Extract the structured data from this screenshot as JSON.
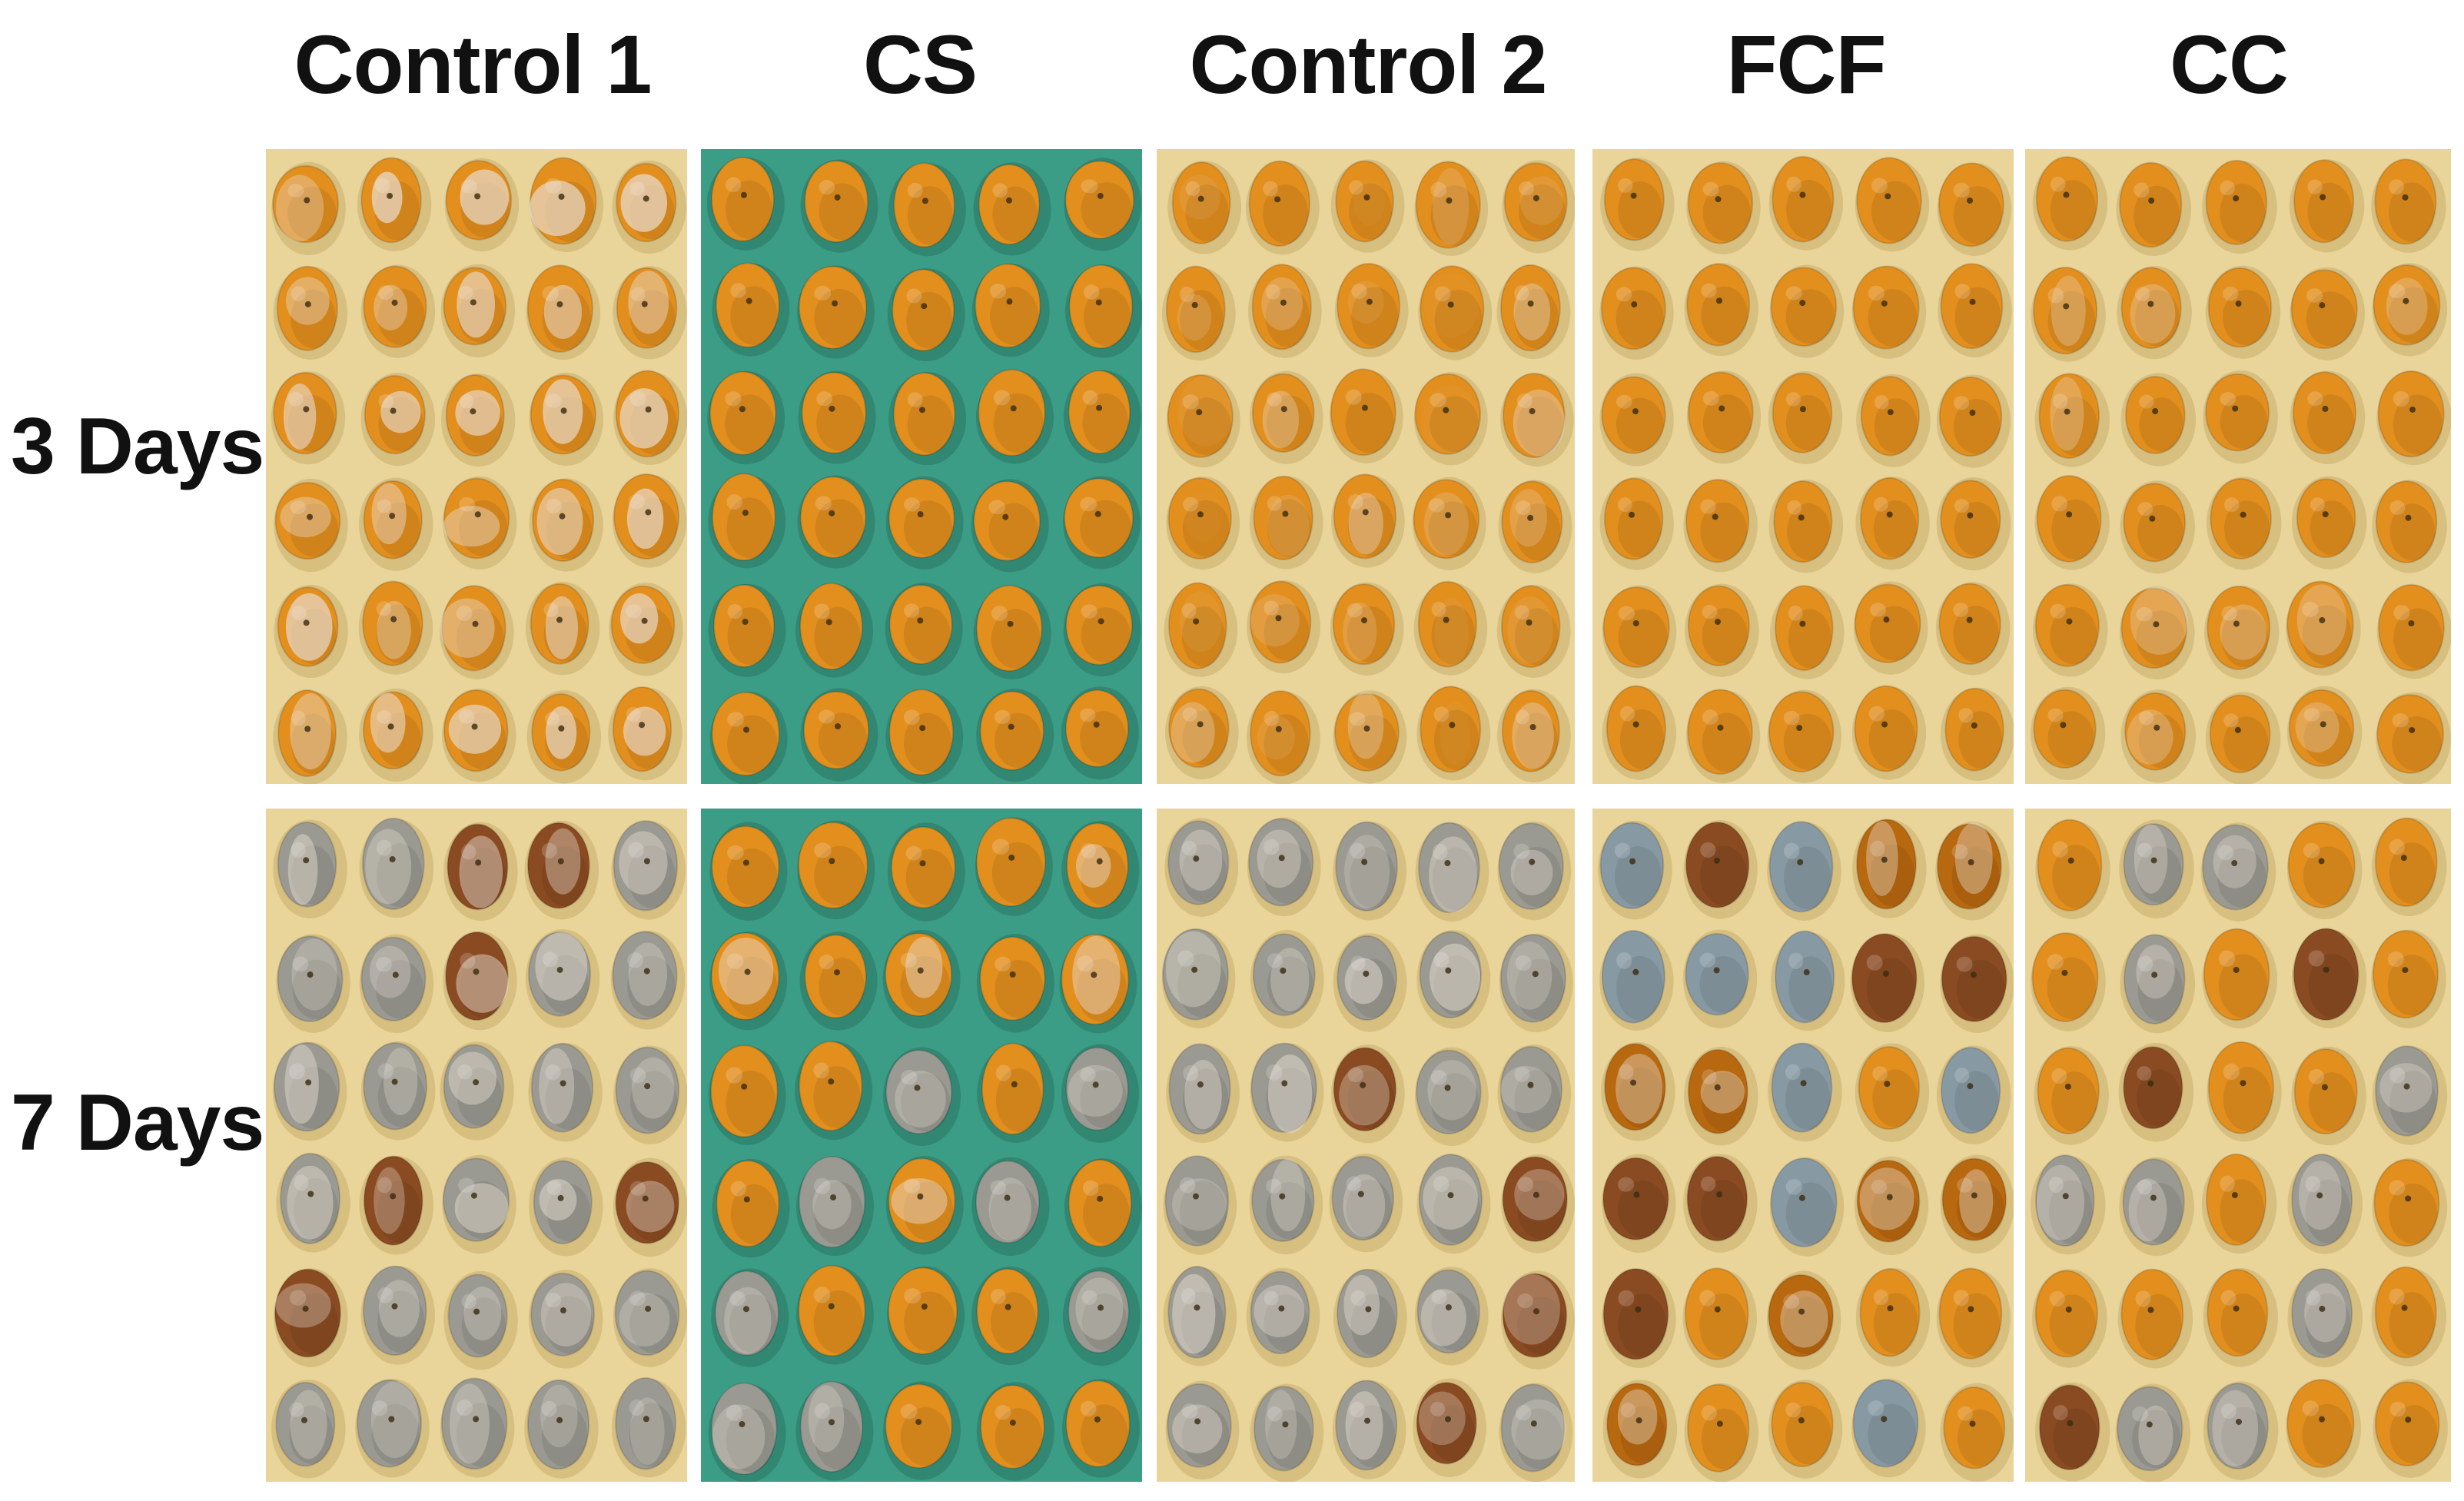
{
  "figure": {
    "columns": [
      {
        "label": "Control 1",
        "tray": "cream"
      },
      {
        "label": "CS",
        "tray": "green"
      },
      {
        "label": "Control 2",
        "tray": "cream"
      },
      {
        "label": "FCF",
        "tray": "cream"
      },
      {
        "label": "CC",
        "tray": "cream"
      }
    ],
    "rows": [
      {
        "label": "3 Days",
        "state": "early"
      },
      {
        "label": "7 Days",
        "state": "late"
      }
    ],
    "grid": {
      "fruit_rows": 6,
      "fruit_cols": 5
    }
  },
  "colors": {
    "tray_cream": "#e9d49a",
    "tray_cream_shadow": "#c9ad6c",
    "tray_green": "#3c9d86",
    "tray_green_shadow": "#2a7463",
    "fruit_orange": "#e28f1e",
    "fruit_dark": "#b8680f",
    "mold_white": "#e8ded2",
    "mold_grey": "#9a9a92",
    "mold_blue": "#8799a3",
    "rot_brown": "#8a4b22"
  }
}
